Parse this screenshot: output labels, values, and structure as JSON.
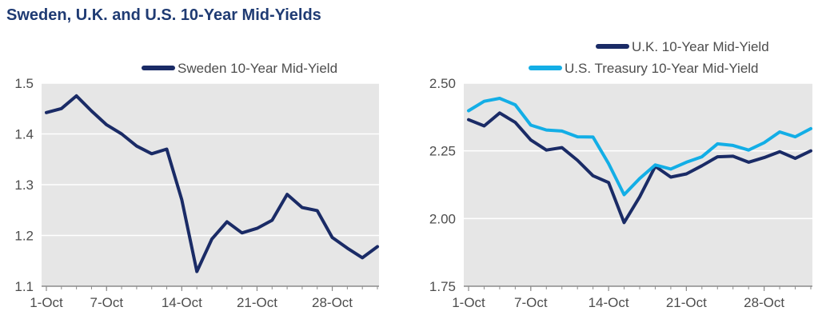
{
  "title": "Sweden, U.K. and U.S. 10-Year Mid-Yields",
  "colors": {
    "navy": "#1a2b66",
    "cyan": "#13aee6",
    "plot_bg": "#e6e6e6",
    "grid": "#ffffff",
    "axis": "#8c8c8c"
  },
  "chart_data": [
    {
      "type": "line",
      "title": "",
      "xlabel": "",
      "ylabel": "",
      "x": [
        "1-Oct",
        "2-Oct",
        "3-Oct",
        "4-Oct",
        "5-Oct",
        "6-Oct",
        "7-Oct",
        "8-Oct",
        "9-Oct",
        "10-Oct",
        "11-Oct",
        "12-Oct",
        "13-Oct",
        "14-Oct",
        "15-Oct",
        "16-Oct",
        "17-Oct",
        "18-Oct",
        "19-Oct",
        "20-Oct",
        "21-Oct",
        "22-Oct",
        "23-Oct",
        "24-Oct",
        "25-Oct",
        "26-Oct",
        "27-Oct",
        "28-Oct",
        "29-Oct",
        "30-Oct",
        "31-Oct"
      ],
      "xticks": [
        "1-Oct",
        "7-Oct",
        "14-Oct",
        "21-Oct",
        "28-Oct"
      ],
      "xtick_index": [
        0,
        6,
        13,
        20,
        27
      ],
      "ylim": [
        1.1,
        1.5
      ],
      "yticks": [
        "1.1",
        "1.2",
        "1.3",
        "1.4",
        "1.5"
      ],
      "grid": true,
      "legend": "top-right",
      "series": [
        {
          "name": "Sweden 10-Year Mid-Yield",
          "color": "#1a2b66",
          "points": [
            [
              0,
              1.442
            ],
            [
              1,
              1.45
            ],
            [
              2,
              1.475
            ],
            [
              3,
              1.445
            ],
            [
              4,
              1.418
            ],
            [
              5,
              1.4
            ],
            [
              6,
              1.376
            ],
            [
              7,
              1.361
            ],
            [
              8,
              1.37
            ],
            [
              9,
              1.27
            ],
            [
              10,
              1.129
            ],
            [
              11,
              1.193
            ],
            [
              12,
              1.227
            ],
            [
              13,
              1.205
            ],
            [
              14,
              1.214
            ],
            [
              15,
              1.23
            ],
            [
              16,
              1.281
            ],
            [
              17,
              1.255
            ],
            [
              18,
              1.249
            ],
            [
              19,
              1.196
            ],
            [
              20,
              1.175
            ],
            [
              21,
              1.156
            ],
            [
              22,
              1.178
            ]
          ]
        }
      ]
    },
    {
      "type": "line",
      "title": "",
      "xlabel": "",
      "ylabel": "",
      "x": [
        "1-Oct",
        "2-Oct",
        "3-Oct",
        "4-Oct",
        "5-Oct",
        "6-Oct",
        "7-Oct",
        "8-Oct",
        "9-Oct",
        "10-Oct",
        "11-Oct",
        "12-Oct",
        "13-Oct",
        "14-Oct",
        "15-Oct",
        "16-Oct",
        "17-Oct",
        "18-Oct",
        "19-Oct",
        "20-Oct",
        "21-Oct",
        "22-Oct",
        "23-Oct",
        "24-Oct",
        "25-Oct",
        "26-Oct",
        "27-Oct",
        "28-Oct",
        "29-Oct",
        "30-Oct",
        "31-Oct"
      ],
      "xticks": [
        "1-Oct",
        "7-Oct",
        "14-Oct",
        "21-Oct",
        "28-Oct"
      ],
      "xtick_index": [
        0,
        6,
        13,
        20,
        27
      ],
      "ylim": [
        1.75,
        2.5
      ],
      "yticks": [
        "1.75",
        "2.00",
        "2.25",
        "2.50"
      ],
      "grid": true,
      "legend": "top-right",
      "series": [
        {
          "name": "U.K. 10-Year Mid-Yield",
          "color": "#1a2b66",
          "points": [
            [
              0,
              2.365
            ],
            [
              1,
              2.342
            ],
            [
              2,
              2.39
            ],
            [
              3,
              2.355
            ],
            [
              4,
              2.29
            ],
            [
              5,
              2.253
            ],
            [
              6,
              2.262
            ],
            [
              7,
              2.215
            ],
            [
              8,
              2.158
            ],
            [
              9,
              2.133
            ],
            [
              10,
              1.985
            ],
            [
              11,
              2.08
            ],
            [
              12,
              2.193
            ],
            [
              13,
              2.153
            ],
            [
              14,
              2.165
            ],
            [
              15,
              2.195
            ],
            [
              16,
              2.228
            ],
            [
              17,
              2.23
            ],
            [
              18,
              2.208
            ],
            [
              19,
              2.225
            ],
            [
              20,
              2.247
            ],
            [
              21,
              2.222
            ],
            [
              22,
              2.25
            ]
          ]
        },
        {
          "name": "U.S. Treasury 10-Year Mid-Yield",
          "color": "#13aee6",
          "points": [
            [
              0,
              2.398
            ],
            [
              1,
              2.433
            ],
            [
              2,
              2.444
            ],
            [
              3,
              2.42
            ],
            [
              4,
              2.345
            ],
            [
              5,
              2.327
            ],
            [
              6,
              2.323
            ],
            [
              7,
              2.302
            ],
            [
              8,
              2.301
            ],
            [
              9,
              2.203
            ],
            [
              10,
              2.088
            ],
            [
              11,
              2.148
            ],
            [
              12,
              2.198
            ],
            [
              13,
              2.183
            ],
            [
              14,
              2.208
            ],
            [
              15,
              2.228
            ],
            [
              16,
              2.276
            ],
            [
              17,
              2.27
            ],
            [
              18,
              2.253
            ],
            [
              19,
              2.28
            ],
            [
              20,
              2.32
            ],
            [
              21,
              2.302
            ],
            [
              22,
              2.332
            ]
          ]
        }
      ]
    }
  ]
}
